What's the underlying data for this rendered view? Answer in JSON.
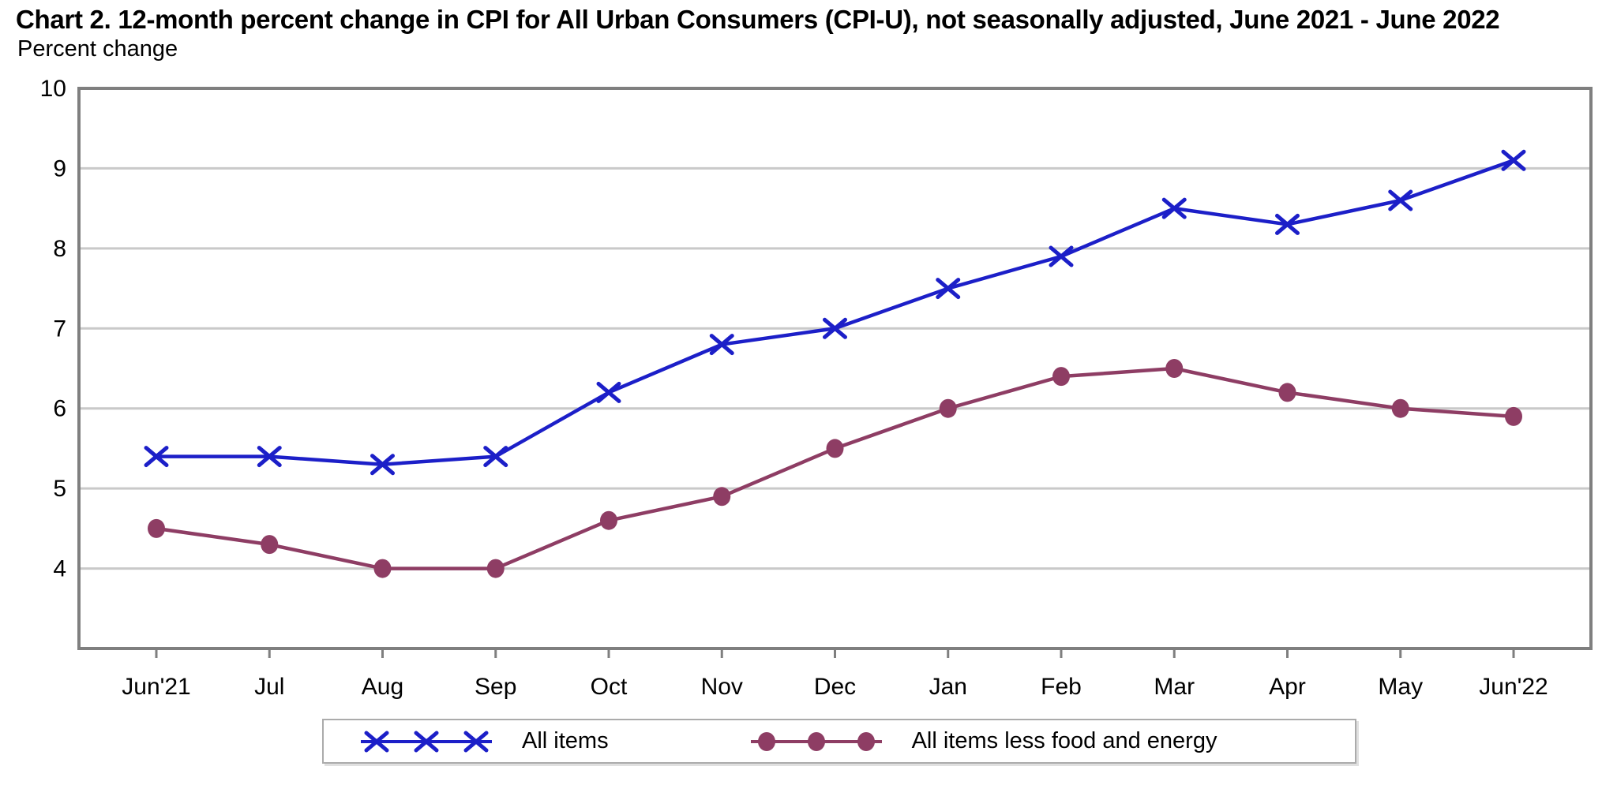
{
  "header": {
    "title": "Chart 2. 12-month percent change in CPI for All Urban Consumers (CPI-U), not seasonally adjusted, June 2021 - June 2022",
    "unit_label": "Percent change"
  },
  "chart_data": {
    "type": "line",
    "title": "Chart 2. 12-month percent change in CPI for All Urban Consumers (CPI-U), not seasonally adjusted, June 2021 - June 2022",
    "ylabel": "Percent change",
    "xlabel": "",
    "categories": [
      "Jun'21",
      "Jul",
      "Aug",
      "Sep",
      "Oct",
      "Nov",
      "Dec",
      "Jan",
      "Feb",
      "Mar",
      "Apr",
      "May",
      "Jun'22"
    ],
    "series": [
      {
        "name": "All items",
        "marker": "x",
        "color": "#1c1fc8",
        "values": [
          5.4,
          5.4,
          5.3,
          5.4,
          6.2,
          6.8,
          7.0,
          7.5,
          7.9,
          8.5,
          8.3,
          8.6,
          9.1
        ]
      },
      {
        "name": "All items less food and energy",
        "marker": "dot",
        "color": "#8e3d64",
        "values": [
          4.5,
          4.3,
          4.0,
          4.0,
          4.6,
          4.9,
          5.5,
          6.0,
          6.4,
          6.5,
          6.2,
          6.0,
          5.9
        ]
      }
    ],
    "ylim": [
      3,
      10
    ],
    "yticks": [
      4,
      5,
      6,
      7,
      8,
      9,
      10
    ],
    "grid": true,
    "legend_position": "bottom-center",
    "styles": {
      "grid_color": "#c9c9c9",
      "frame_color": "#7f7f7f",
      "tick_color": "#7f7f7f",
      "text_color": "#000000",
      "background": "#ffffff"
    }
  }
}
